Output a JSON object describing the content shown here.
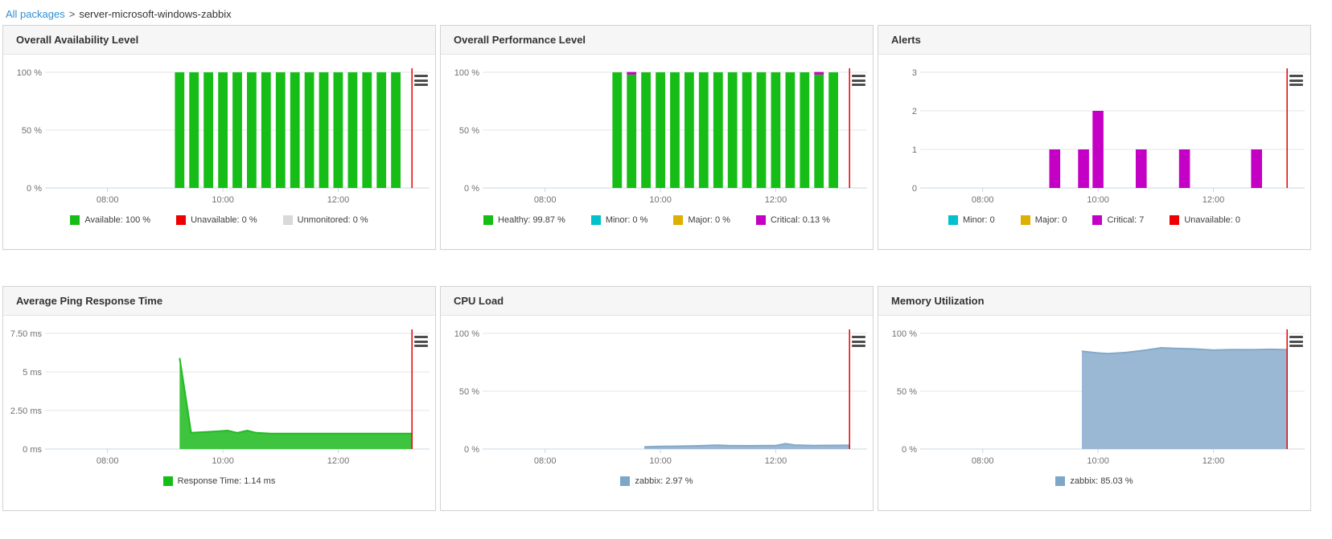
{
  "breadcrumb": {
    "root": "All packages",
    "separator": ">",
    "current": "server-microsoft-windows-zabbix"
  },
  "colors": {
    "marker": "#e60000",
    "axis_line": "#c7d7e2",
    "grid": "#e6e6e6",
    "tick_text": "#707070",
    "green": "#17bd17",
    "red": "#ee0000",
    "gray": "#d9d9d9",
    "cyan": "#00c2cc",
    "gold": "#ddb000",
    "magenta": "#c400c4",
    "blue_fill": "#9ab8d4",
    "blue_line": "#82a9c9"
  },
  "chart_data": [
    {
      "title": "Overall Availability Level",
      "type": "bar",
      "x_domain": [
        7,
        13.5
      ],
      "x_ticks": [
        {
          "v": 8,
          "label": "08:00"
        },
        {
          "v": 10,
          "label": "10:00"
        },
        {
          "v": 12,
          "label": "12:00"
        }
      ],
      "ylim": [
        0,
        100
      ],
      "y_ticks": [
        {
          "v": 100,
          "label": "100 %"
        },
        {
          "v": 50,
          "label": "50 %"
        },
        {
          "v": 0,
          "label": "0 %"
        }
      ],
      "marker_x": 13.28,
      "bar_width_h": 0.165,
      "series": [
        {
          "name": "Available",
          "color": "#17bd17",
          "points": [
            [
              9.25,
              100
            ],
            [
              9.5,
              100
            ],
            [
              9.75,
              100
            ],
            [
              10,
              100
            ],
            [
              10.25,
              100
            ],
            [
              10.5,
              100
            ],
            [
              10.75,
              100
            ],
            [
              11,
              100
            ],
            [
              11.25,
              100
            ],
            [
              11.5,
              100
            ],
            [
              11.75,
              100
            ],
            [
              12,
              100
            ],
            [
              12.25,
              100
            ],
            [
              12.5,
              100
            ],
            [
              12.75,
              100
            ],
            [
              13,
              100
            ]
          ]
        }
      ],
      "legend": [
        {
          "label": "Available: 100 %",
          "color": "#17bd17"
        },
        {
          "label": "Unavailable: 0 %",
          "color": "#ee0000"
        },
        {
          "label": "Unmonitored: 0 %",
          "color": "#d9d9d9"
        }
      ]
    },
    {
      "title": "Overall Performance Level",
      "type": "bar",
      "x_domain": [
        7,
        13.5
      ],
      "x_ticks": [
        {
          "v": 8,
          "label": "08:00"
        },
        {
          "v": 10,
          "label": "10:00"
        },
        {
          "v": 12,
          "label": "12:00"
        }
      ],
      "ylim": [
        0,
        100
      ],
      "y_ticks": [
        {
          "v": 100,
          "label": "100 %"
        },
        {
          "v": 50,
          "label": "50 %"
        },
        {
          "v": 0,
          "label": "0 %"
        }
      ],
      "marker_x": 13.28,
      "bar_width_h": 0.165,
      "series": [
        {
          "name": "Healthy",
          "color": "#17bd17",
          "points": [
            [
              9.25,
              100
            ],
            [
              9.5,
              98.1
            ],
            [
              9.75,
              100
            ],
            [
              10,
              100
            ],
            [
              10.25,
              100
            ],
            [
              10.5,
              100
            ],
            [
              10.75,
              100
            ],
            [
              11,
              100
            ],
            [
              11.25,
              100
            ],
            [
              11.5,
              100
            ],
            [
              11.75,
              100
            ],
            [
              12,
              100
            ],
            [
              12.25,
              100
            ],
            [
              12.5,
              100
            ],
            [
              12.75,
              98.1
            ],
            [
              13,
              100
            ]
          ]
        },
        {
          "name": "Critical",
          "color": "#c400c4",
          "points": [
            [
              9.5,
              2.2
            ],
            [
              12.75,
              2.2
            ]
          ]
        }
      ],
      "legend": [
        {
          "label": "Healthy: 99.87 %",
          "color": "#17bd17"
        },
        {
          "label": "Minor: 0 %",
          "color": "#00c2cc"
        },
        {
          "label": "Major: 0 %",
          "color": "#ddb000"
        },
        {
          "label": "Critical: 0.13 %",
          "color": "#c400c4"
        }
      ]
    },
    {
      "title": "Alerts",
      "type": "bar",
      "x_domain": [
        7,
        13.5
      ],
      "x_ticks": [
        {
          "v": 8,
          "label": "08:00"
        },
        {
          "v": 10,
          "label": "10:00"
        },
        {
          "v": 12,
          "label": "12:00"
        }
      ],
      "ylim": [
        0,
        3
      ],
      "y_ticks": [
        {
          "v": 3,
          "label": "3"
        },
        {
          "v": 2,
          "label": "2"
        },
        {
          "v": 1,
          "label": "1"
        },
        {
          "v": 0,
          "label": "0"
        }
      ],
      "marker_x": 13.28,
      "bar_width_h": 0.19,
      "series": [
        {
          "name": "Critical",
          "color": "#c400c4",
          "points": [
            [
              9.25,
              1
            ],
            [
              9.75,
              1
            ],
            [
              10,
              2
            ],
            [
              10.75,
              1
            ],
            [
              11.5,
              1
            ],
            [
              12.75,
              1
            ]
          ]
        }
      ],
      "legend": [
        {
          "label": "Minor: 0",
          "color": "#00c2cc"
        },
        {
          "label": "Major: 0",
          "color": "#ddb000"
        },
        {
          "label": "Critical: 7",
          "color": "#c400c4"
        },
        {
          "label": "Unavailable: 0",
          "color": "#ee0000"
        }
      ]
    },
    {
      "title": "Average Ping Response Time",
      "type": "area",
      "x_domain": [
        7,
        13.5
      ],
      "x_ticks": [
        {
          "v": 8,
          "label": "08:00"
        },
        {
          "v": 10,
          "label": "10:00"
        },
        {
          "v": 12,
          "label": "12:00"
        }
      ],
      "ylim": [
        0,
        7.5
      ],
      "y_ticks": [
        {
          "v": 7.5,
          "label": "7.50 ms"
        },
        {
          "v": 5,
          "label": "5 ms"
        },
        {
          "v": 2.5,
          "label": "2.50 ms"
        },
        {
          "v": 0,
          "label": "0 ms"
        }
      ],
      "marker_x": 13.28,
      "series": [
        {
          "name": "Response Time",
          "color": "#21bb21",
          "fill": "#3ec43e",
          "points": [
            [
              9.25,
              5.9
            ],
            [
              9.33,
              4.0
            ],
            [
              9.45,
              1.05
            ],
            [
              9.67,
              1.1
            ],
            [
              9.92,
              1.15
            ],
            [
              10.08,
              1.2
            ],
            [
              10.25,
              1.05
            ],
            [
              10.42,
              1.2
            ],
            [
              10.58,
              1.05
            ],
            [
              10.83,
              1.0
            ],
            [
              11.5,
              1.0
            ],
            [
              12.25,
              1.0
            ],
            [
              12.75,
              1.0
            ],
            [
              13.28,
              1.0
            ]
          ]
        }
      ],
      "legend": [
        {
          "label": "Response Time: 1.14 ms",
          "color": "#17bd17"
        }
      ]
    },
    {
      "title": "CPU Load",
      "type": "area",
      "x_domain": [
        7,
        13.5
      ],
      "x_ticks": [
        {
          "v": 8,
          "label": "08:00"
        },
        {
          "v": 10,
          "label": "10:00"
        },
        {
          "v": 12,
          "label": "12:00"
        }
      ],
      "ylim": [
        0,
        100
      ],
      "y_ticks": [
        {
          "v": 100,
          "label": "100 %"
        },
        {
          "v": 50,
          "label": "50 %"
        },
        {
          "v": 0,
          "label": "0 %"
        }
      ],
      "marker_x": 13.28,
      "series": [
        {
          "name": "zabbix",
          "color": "#82a9c9",
          "fill": "#9ab8d4",
          "points": [
            [
              9.72,
              1.8
            ],
            [
              10.0,
              2.2
            ],
            [
              10.33,
              2.4
            ],
            [
              10.67,
              2.8
            ],
            [
              11.0,
              3.3
            ],
            [
              11.17,
              3.0
            ],
            [
              11.5,
              2.8
            ],
            [
              11.83,
              2.9
            ],
            [
              12.0,
              3.0
            ],
            [
              12.17,
              4.6
            ],
            [
              12.33,
              3.4
            ],
            [
              12.67,
              3.0
            ],
            [
              13.0,
              3.1
            ],
            [
              13.28,
              3.2
            ]
          ]
        }
      ],
      "legend": [
        {
          "label": "zabbix: 2.97 %",
          "color": "#7da7c9"
        }
      ]
    },
    {
      "title": "Memory Utilization",
      "type": "area",
      "x_domain": [
        7,
        13.5
      ],
      "x_ticks": [
        {
          "v": 8,
          "label": "08:00"
        },
        {
          "v": 10,
          "label": "10:00"
        },
        {
          "v": 12,
          "label": "12:00"
        }
      ],
      "ylim": [
        0,
        100
      ],
      "y_ticks": [
        {
          "v": 100,
          "label": "100 %"
        },
        {
          "v": 50,
          "label": "50 %"
        },
        {
          "v": 0,
          "label": "0 %"
        }
      ],
      "marker_x": 13.28,
      "series": [
        {
          "name": "zabbix",
          "color": "#82a9c9",
          "fill": "#9ab8d4",
          "points": [
            [
              9.72,
              84.5
            ],
            [
              10.0,
              83.0
            ],
            [
              10.17,
              82.5
            ],
            [
              10.5,
              83.5
            ],
            [
              10.83,
              85.5
            ],
            [
              11.1,
              87.5
            ],
            [
              11.33,
              87.0
            ],
            [
              11.67,
              86.5
            ],
            [
              12.0,
              85.5
            ],
            [
              12.33,
              86.0
            ],
            [
              12.67,
              85.8
            ],
            [
              13.0,
              86.2
            ],
            [
              13.28,
              85.8
            ]
          ]
        }
      ],
      "legend": [
        {
          "label": "zabbix: 85.03 %",
          "color": "#7da7c9"
        }
      ]
    }
  ]
}
